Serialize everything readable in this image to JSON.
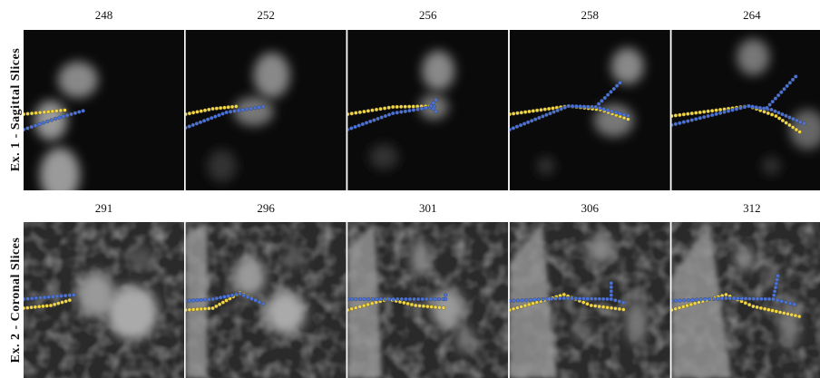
{
  "rows": [
    {
      "label": "Ex. 1 - Sagittal Slices",
      "slices": [
        "248",
        "252",
        "256",
        "258",
        "264"
      ]
    },
    {
      "label": "Ex. 2 - Coronal Slices",
      "slices": [
        "291",
        "296",
        "301",
        "306",
        "312"
      ]
    }
  ]
}
